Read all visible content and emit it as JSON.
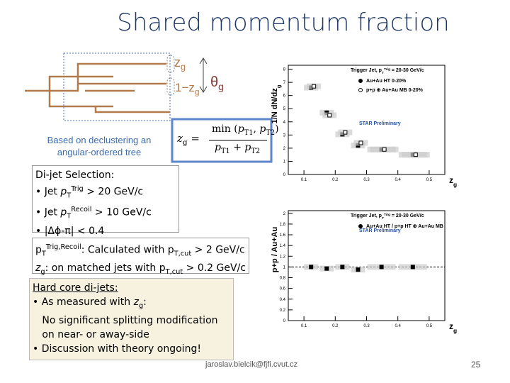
{
  "title": "Shared momentum fraction",
  "diagram": {
    "zg": [
      {
        "text": "z"
      },
      {
        "text": "g",
        "style": "sub"
      }
    ],
    "one_minus_zg": [
      {
        "text": "1−z"
      },
      {
        "text": "g",
        "style": "sub"
      }
    ],
    "theta_g": [
      {
        "text": "θ"
      },
      {
        "text": "g",
        "style": "sub"
      }
    ],
    "caption": [
      "Based on declustering an",
      "angular-ordered tree"
    ],
    "formula_lhs": [
      {
        "text": "z",
        "style": "i"
      },
      {
        "text": "g",
        "style": "sub"
      },
      {
        "text": " ="
      }
    ],
    "formula_num": [
      {
        "text": "min ("
      },
      {
        "text": "p",
        "style": "i"
      },
      {
        "text": "T1",
        "style": "sub"
      },
      {
        "text": ", "
      },
      {
        "text": "p",
        "style": "i"
      },
      {
        "text": "T2",
        "style": "sub"
      },
      {
        "text": ")"
      }
    ],
    "formula_den": [
      {
        "text": "p",
        "style": "i"
      },
      {
        "text": "T1",
        "style": "sub"
      },
      {
        "text": " + "
      },
      {
        "text": "p",
        "style": "i"
      },
      {
        "text": "T2",
        "style": "sub"
      }
    ]
  },
  "boxes": [
    [
      [
        {
          "text": "Di-jet Selection:"
        }
      ],
      [
        {
          "text": "• Jet "
        },
        {
          "text": "p",
          "style": "i"
        },
        {
          "text": "T",
          "style": "sub"
        },
        {
          "text": "Trig",
          "style": "sup"
        },
        {
          "text": " > 20 GeV/c"
        }
      ],
      [
        {
          "text": "• Jet "
        },
        {
          "text": "p",
          "style": "i"
        },
        {
          "text": "T",
          "style": "sub"
        },
        {
          "text": "Recoil",
          "style": "sup"
        },
        {
          "text": " > 10 GeV/c"
        }
      ],
      [
        {
          "text": "• |Δϕ-π| < 0.4"
        }
      ]
    ],
    [
      [
        {
          "text": "p"
        },
        {
          "text": "T",
          "style": "sub"
        },
        {
          "text": "Trig,Recoil",
          "style": "sup"
        },
        {
          "text": ": Calculated with p"
        },
        {
          "text": "T,cut",
          "style": "sub"
        },
        {
          "text": " > 2 GeV/c"
        }
      ],
      [
        {
          "text": "z",
          "style": "i"
        },
        {
          "text": "g",
          "style": "sub"
        },
        {
          "text": ": on matched jets with p"
        },
        {
          "text": "T,cut",
          "style": "sub"
        },
        {
          "text": " > 0.2 GeV/c"
        }
      ]
    ],
    [
      [
        {
          "text": "Hard core di-jets:",
          "style": "u"
        }
      ],
      [
        {
          "text": "• As measured with "
        },
        {
          "text": "z",
          "style": "i"
        },
        {
          "text": "g",
          "style": "sub"
        },
        {
          "text": ":"
        }
      ],
      [
        {
          "text": "   No significant splitting modification"
        }
      ],
      [
        {
          "text": "   on near- or away-side"
        }
      ],
      [
        {
          "text": "• Discussion with theory ongoing!"
        }
      ]
    ]
  ],
  "footer": {
    "email": "jaroslav.bielcik@fjfi.cvut.cz",
    "page": "25"
  },
  "plots": [
    {
      "type": "scatter",
      "ylabel": [
        {
          "text": "1/N dN/dz"
        },
        {
          "text": "g",
          "style": "sub"
        }
      ],
      "xlabel": [
        {
          "text": "z"
        },
        {
          "text": "g",
          "style": "sub"
        }
      ],
      "legend_title": [
        {
          "text": "Trigger Jet, p"
        },
        {
          "text": "T",
          "style": "sub"
        },
        {
          "text": "Trig",
          "style": "sup"
        },
        {
          "text": " = 20-30 GeV/c"
        }
      ],
      "note": "STAR Preliminary",
      "x": [
        0.125,
        0.175,
        0.225,
        0.275,
        0.35,
        0.45
      ],
      "series": [
        {
          "name": "Au+Au HT 0-20%",
          "color": "#000000",
          "marker": "filled",
          "values": [
            6.6,
            4.7,
            3.05,
            2.2,
            1.9,
            1.5
          ]
        },
        {
          "name": "p+p ⊕ Au+Au MB 0-20%",
          "color": "#000000",
          "marker": "open",
          "values": [
            6.7,
            4.5,
            3.2,
            2.4,
            1.9,
            1.5
          ]
        }
      ],
      "xlim": [
        0.05,
        0.55
      ],
      "ylim": [
        0,
        8.3
      ],
      "xticks": [
        0.1,
        0.2,
        0.3,
        0.4,
        0.5
      ],
      "yticks": [
        0,
        1,
        2,
        3,
        4,
        5,
        6,
        7,
        8
      ]
    },
    {
      "type": "scatter",
      "ylabel": [
        {
          "text": "p+p / Au+Au"
        }
      ],
      "xlabel": [
        {
          "text": "z"
        },
        {
          "text": "g",
          "style": "sub"
        }
      ],
      "legend_title": [
        {
          "text": "Trigger Jet, p"
        },
        {
          "text": "T",
          "style": "sub"
        },
        {
          "text": "Trig",
          "style": "sup"
        },
        {
          "text": " = 20-30 GeV/c"
        }
      ],
      "note": "STAR Preliminary",
      "x": [
        0.125,
        0.175,
        0.225,
        0.275,
        0.35,
        0.45
      ],
      "series": [
        {
          "name": "Au+Au HT / p+p HT ⊕ Au+Au MB",
          "color": "#000000",
          "marker": "filled",
          "values": [
            1.0,
            0.97,
            1.0,
            0.95,
            1.0,
            1.0
          ]
        }
      ],
      "reference": 1,
      "xlim": [
        0.05,
        0.55
      ],
      "ylim": [
        0,
        2.05
      ],
      "xticks": [
        0.1,
        0.2,
        0.3,
        0.4,
        0.5
      ],
      "yticks": [
        0,
        0.2,
        0.4,
        0.6,
        0.8,
        1,
        1.2,
        1.4,
        1.6,
        1.8,
        2
      ]
    }
  ]
}
